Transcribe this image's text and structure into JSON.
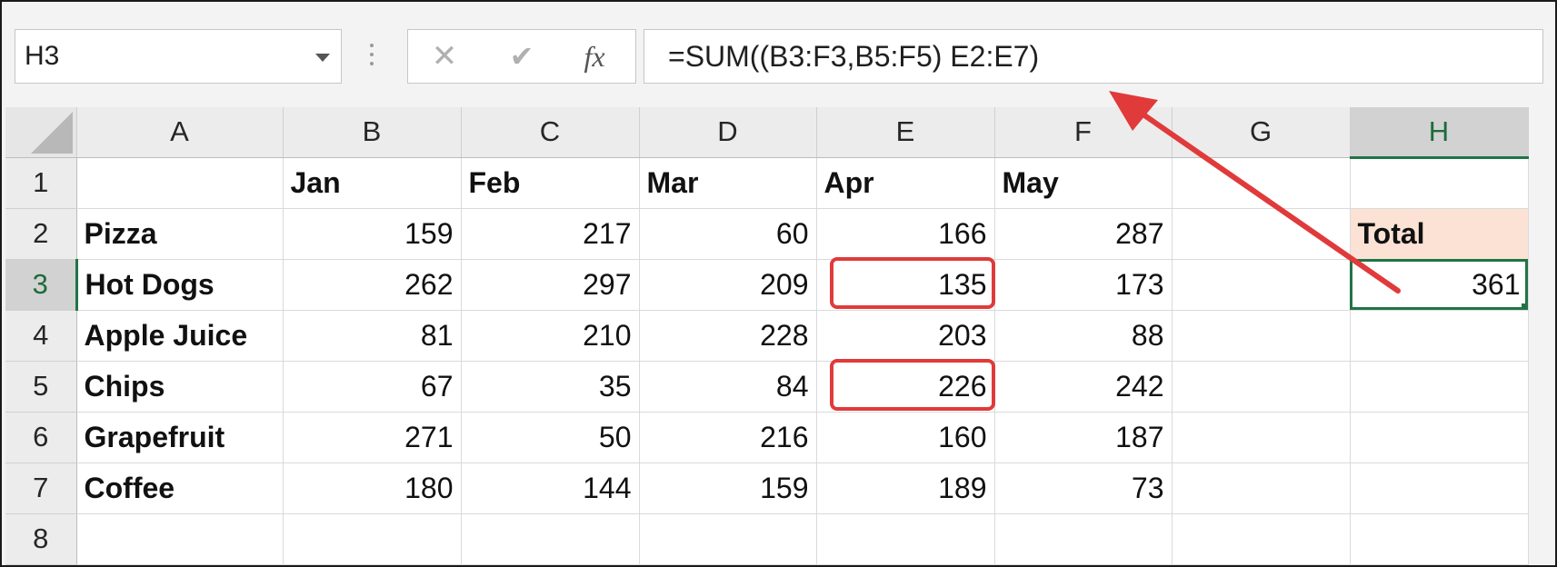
{
  "name_box": {
    "value": "H3"
  },
  "formula_bar": {
    "cancel_icon": "close-icon",
    "enter_icon": "checkmark-icon",
    "fx_label": "fx",
    "formula": "=SUM((B3:F3,B5:F5) E2:E7)"
  },
  "columns": [
    "A",
    "B",
    "C",
    "D",
    "E",
    "F",
    "G",
    "H"
  ],
  "rows": [
    {
      "n": "1",
      "cells": [
        "",
        "Jan",
        "Feb",
        "Mar",
        "Apr",
        "May",
        "",
        ""
      ]
    },
    {
      "n": "2",
      "cells": [
        "Pizza",
        "159",
        "217",
        "60",
        "166",
        "287",
        "",
        "Total"
      ]
    },
    {
      "n": "3",
      "cells": [
        "Hot Dogs",
        "262",
        "297",
        "209",
        "135",
        "173",
        "",
        "361"
      ]
    },
    {
      "n": "4",
      "cells": [
        "Apple Juice",
        "81",
        "210",
        "228",
        "203",
        "88",
        "",
        ""
      ]
    },
    {
      "n": "5",
      "cells": [
        "Chips",
        "67",
        "35",
        "84",
        "226",
        "242",
        "",
        ""
      ]
    },
    {
      "n": "6",
      "cells": [
        "Grapefruit",
        "271",
        "50",
        "216",
        "160",
        "187",
        "",
        ""
      ]
    },
    {
      "n": "7",
      "cells": [
        "Coffee",
        "180",
        "144",
        "159",
        "189",
        "73",
        "",
        ""
      ]
    },
    {
      "n": "8",
      "cells": [
        "",
        "",
        "",
        "",
        "",
        "",
        "",
        ""
      ]
    }
  ],
  "selection": {
    "active_cell": "H3",
    "selected_column": "H",
    "selected_row": "3"
  },
  "highlighted_cells": [
    "E3",
    "E5"
  ],
  "colors": {
    "accent": "#217346",
    "highlight_box": "#e03a3a",
    "total_header_fill": "#fbe2d5",
    "arrow": "#e03a3a"
  }
}
